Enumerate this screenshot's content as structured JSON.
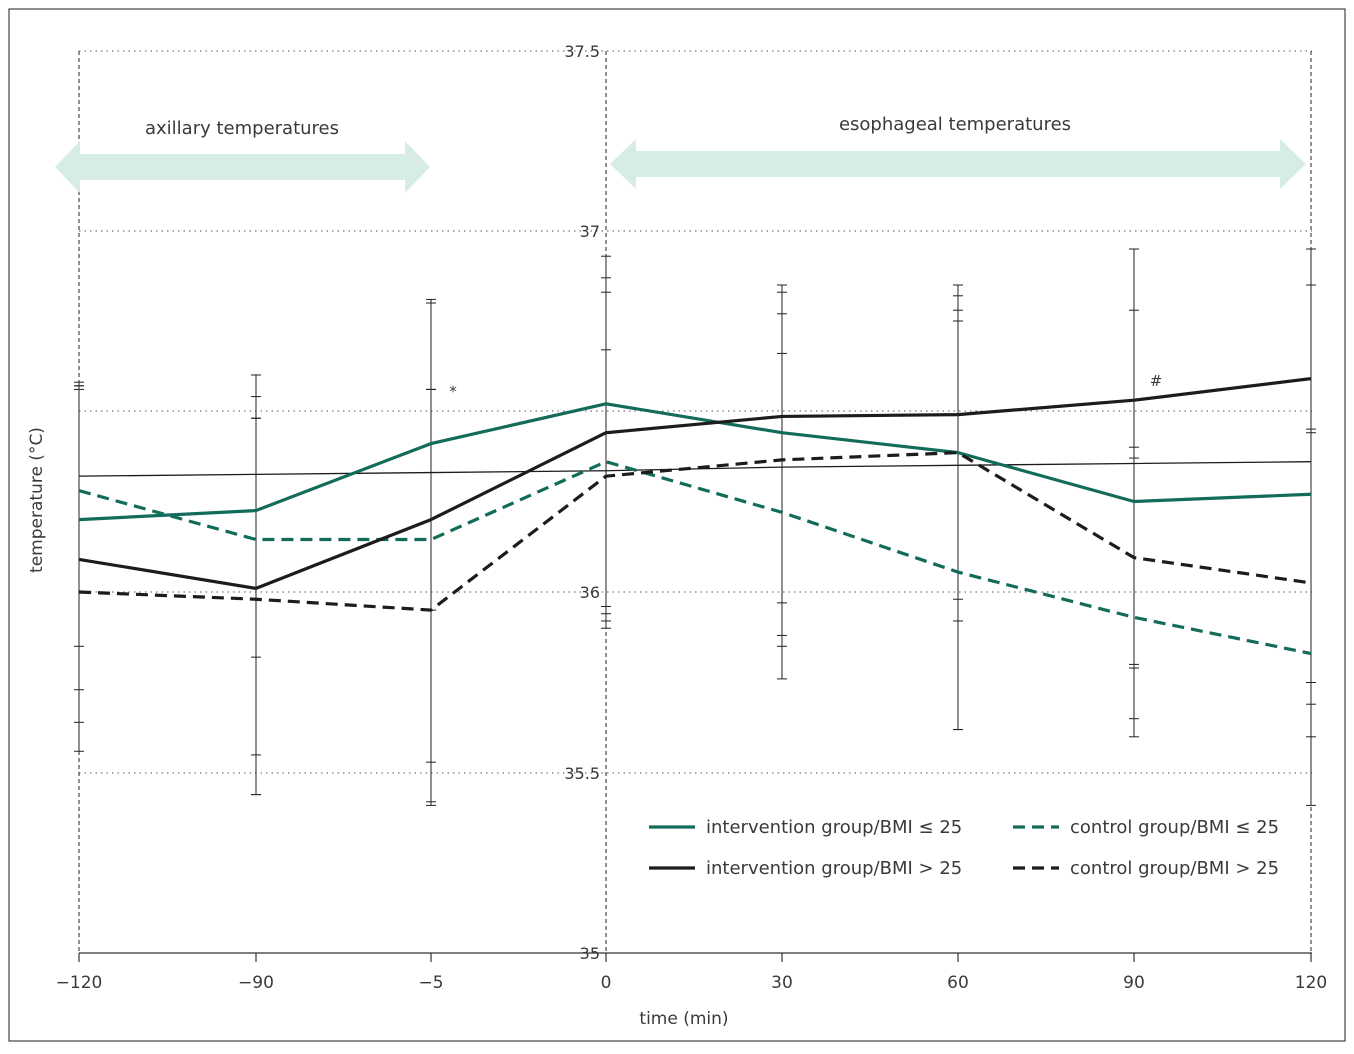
{
  "chart_data": {
    "type": "line",
    "xlabel": "time (min)",
    "ylabel": "temperature (°C)",
    "x_categories": [
      "−120",
      "−90",
      "−5",
      "0",
      "30",
      "60",
      "90",
      "120"
    ],
    "y_ticks": [
      "35",
      "35.5",
      "36",
      "37",
      "37.5"
    ],
    "ylim": [
      35,
      37.5
    ],
    "grid": true,
    "region_labels": [
      "axillary temperatures",
      "esophageal temperatures"
    ],
    "annotations": [
      {
        "text": "*",
        "x_index": 2,
        "y": 36.54
      },
      {
        "text": "#",
        "x_index": 6,
        "y": 36.57
      }
    ],
    "series": [
      {
        "name": "intervention group/BMI ≤ 25",
        "color": "#136b5a",
        "dash": false,
        "values": [
          36.2,
          36.225,
          36.41,
          36.52,
          36.44,
          36.385,
          36.25,
          36.27
        ],
        "err_low": [
          35.85,
          35.82,
          35.95,
          35.96,
          35.88,
          35.92,
          35.8,
          35.75
        ],
        "err_high": [
          36.57,
          36.54,
          36.81,
          36.87,
          36.83,
          36.78,
          36.78,
          36.85
        ]
      },
      {
        "name": "control group/BMI ≤ 25",
        "color": "#136b5a",
        "dash": true,
        "values": [
          36.28,
          36.145,
          36.145,
          36.36,
          36.22,
          36.055,
          35.93,
          35.83
        ],
        "err_low": [
          35.64,
          35.55,
          35.53,
          35.92,
          35.85,
          35.62,
          35.65,
          35.6
        ],
        "err_high": [
          36.57,
          36.48,
          36.56,
          36.67,
          36.66,
          36.82,
          36.37,
          36.45
        ]
      },
      {
        "name": "intervention group/BMI > 25",
        "color": "#1c1c1c",
        "dash": false,
        "values": [
          36.09,
          36.01,
          36.2,
          36.44,
          36.485,
          36.49,
          36.53,
          36.59
        ],
        "err_low": [
          35.73,
          35.44,
          35.42,
          35.94,
          35.76,
          35.62,
          35.6,
          35.41
        ],
        "err_high": [
          36.56,
          36.6,
          36.8,
          36.93,
          36.85,
          36.85,
          36.95,
          36.95
        ]
      },
      {
        "name": "control group/BMI > 25",
        "color": "#1c1c1c",
        "dash": true,
        "values": [
          36.0,
          35.98,
          35.95,
          36.32,
          36.365,
          36.385,
          36.095,
          36.025
        ],
        "err_low": [
          35.56,
          35.44,
          35.41,
          35.9,
          35.97,
          35.98,
          35.79,
          35.69
        ],
        "err_high": [
          36.58,
          36.48,
          36.56,
          36.83,
          36.77,
          36.75,
          36.4,
          36.44
        ]
      }
    ],
    "reference_line": {
      "values": [
        36.32,
        36.325,
        36.33,
        36.335,
        36.345,
        36.35,
        36.355,
        36.36
      ]
    },
    "legend": {
      "position": "bottom-right",
      "columns": [
        [
          "intervention group/BMI ≤ 25",
          "intervention group/BMI > 25"
        ],
        [
          "control group/BMI ≤ 25",
          "control group/BMI > 25"
        ]
      ]
    }
  }
}
